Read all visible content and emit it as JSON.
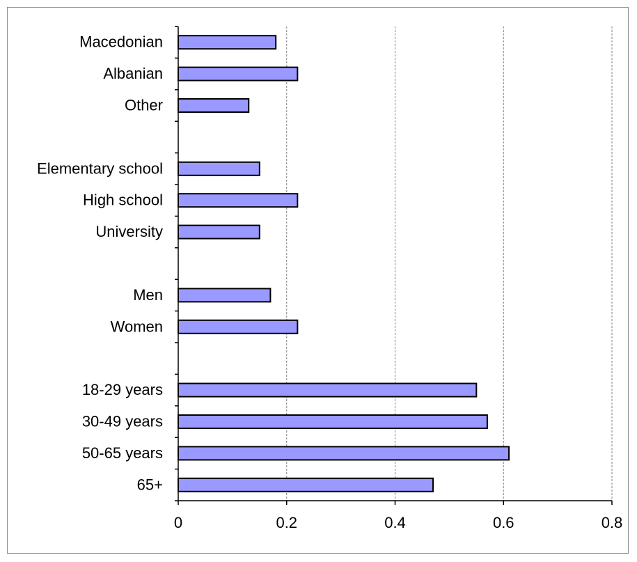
{
  "chart_data": {
    "type": "bar",
    "orientation": "horizontal",
    "categories": [
      "Macedonian",
      "Albanian",
      "Other",
      "",
      "Elementary school",
      "High school",
      "University",
      "",
      "Men",
      "Women",
      "",
      "18-29 years",
      "30-49 years",
      "50-65 years",
      "65+"
    ],
    "values": [
      0.18,
      0.22,
      0.13,
      null,
      0.15,
      0.22,
      0.15,
      null,
      0.17,
      0.22,
      null,
      0.55,
      0.57,
      0.61,
      0.47
    ],
    "x_ticks": [
      "0",
      "0.2",
      "0.4",
      "0.6",
      "0.8"
    ],
    "xlim": [
      0,
      0.8
    ],
    "grid": "vertical dashed",
    "bar_color": "#9999ff",
    "bar_edge_color": "#000000"
  }
}
